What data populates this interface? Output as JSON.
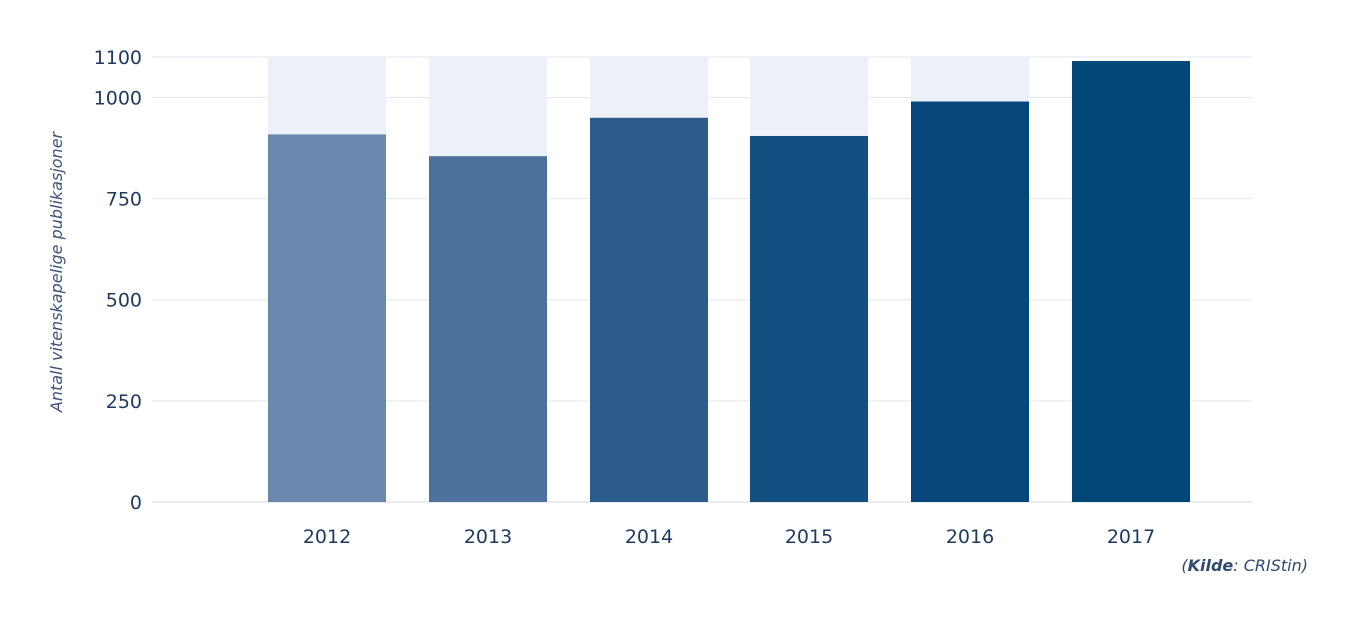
{
  "chart_data": {
    "type": "bar",
    "stacked": true,
    "categories": [
      "2012",
      "2013",
      "2014",
      "2015",
      "2016",
      "2017"
    ],
    "series": [
      {
        "values": [
          909,
          855,
          950,
          905,
          990,
          1090
        ]
      },
      {
        "values": [
          191,
          245,
          150,
          195,
          110,
          0
        ]
      }
    ],
    "colors": {
      "bars": [
        "#6b89ae",
        "#4b719c",
        "#2c5c8b",
        "#135081",
        "#05477a",
        "#004778"
      ],
      "remainder": "#ecf0f8",
      "grid": "#e3e6ec",
      "text": "#1f3a5f"
    },
    "ylabel": "Antall vitenskapelige publikasjoner",
    "ylim": [
      0,
      1100
    ],
    "yticks": [
      0,
      250,
      500,
      750,
      1000,
      1100
    ],
    "grid": true
  },
  "source": {
    "prefix": "(",
    "label": "Kilde",
    "text": ": CRIStin)"
  }
}
